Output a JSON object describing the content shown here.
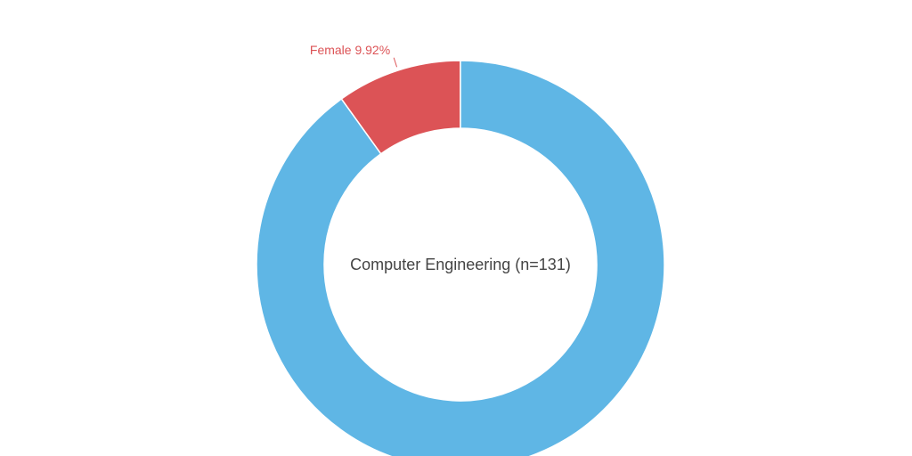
{
  "chart_data": {
    "type": "donut",
    "center_label": "Computer Engineering (n=131)",
    "categories": [
      "Female",
      null
    ],
    "values": [
      9.92,
      90.08
    ],
    "value_labels": [
      "9.92%",
      null
    ],
    "colors": [
      "#dc5356",
      "#5fb6e5"
    ]
  }
}
